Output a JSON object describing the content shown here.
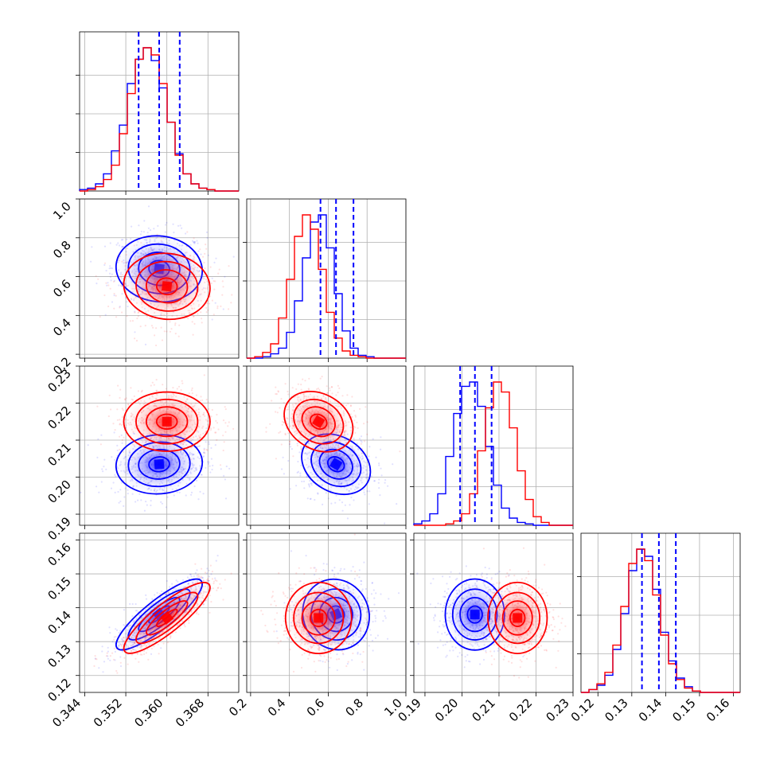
{
  "chart_data": {
    "type": "corner",
    "grid": true,
    "series": [
      {
        "name": "",
        "color": "#0000ff"
      },
      {
        "name": "",
        "color": "#ff0000"
      }
    ],
    "parameters": [
      {
        "range": [
          0.343,
          0.374
        ],
        "ticks": [
          0.344,
          0.352,
          0.36,
          0.368
        ],
        "tick_labels": [
          "0.344",
          "0.352",
          "0.360",
          "0.368"
        ],
        "mean": {
          "blue": 0.3585,
          "red": 0.36
        },
        "sigma": {
          "blue": 0.004,
          "red": 0.004
        },
        "quantiles_blue": [
          0.3545,
          0.3585,
          0.3625
        ]
      },
      {
        "range": [
          0.18,
          1.0
        ],
        "ticks": [
          0.2,
          0.4,
          0.6,
          0.8,
          1.0
        ],
        "tick_labels": [
          "0.2",
          "0.4",
          "0.6",
          "0.8",
          "1.0"
        ],
        "mean": {
          "blue": 0.64,
          "red": 0.55
        },
        "sigma": {
          "blue": 0.085,
          "red": 0.085
        },
        "quantiles_blue": [
          0.56,
          0.64,
          0.73
        ]
      },
      {
        "range": [
          0.187,
          0.23
        ],
        "ticks": [
          0.19,
          0.2,
          0.21,
          0.22,
          0.23
        ],
        "tick_labels": [
          "0.19",
          "0.20",
          "0.21",
          "0.22",
          "0.23"
        ],
        "mean": {
          "blue": 0.2035,
          "red": 0.215
        },
        "sigma": {
          "blue": 0.004,
          "red": 0.004
        },
        "quantiles_blue": [
          0.1995,
          0.2035,
          0.208
        ]
      },
      {
        "range": [
          0.115,
          0.162
        ],
        "ticks": [
          0.12,
          0.13,
          0.14,
          0.15,
          0.16
        ],
        "tick_labels": [
          "0.12",
          "0.13",
          "0.14",
          "0.15",
          "0.16"
        ],
        "mean": {
          "blue": 0.138,
          "red": 0.137
        },
        "sigma": {
          "blue": 0.005,
          "red": 0.005
        },
        "quantiles_blue": [
          0.133,
          0.138,
          0.143
        ]
      }
    ],
    "histograms": {
      "bins": 20,
      "counts_blue": [
        [
          1,
          2,
          5,
          12,
          28,
          46,
          75,
          92,
          100,
          91,
          72,
          48,
          26,
          12,
          5,
          2,
          1,
          0,
          0,
          0
        ],
        [
          0,
          0,
          1,
          3,
          7,
          18,
          40,
          70,
          95,
          100,
          77,
          45,
          19,
          7,
          2,
          1,
          0,
          0,
          0,
          0
        ],
        [
          1,
          3,
          8,
          22,
          48,
          78,
          97,
          100,
          83,
          55,
          28,
          12,
          5,
          2,
          1,
          0,
          0,
          0,
          0,
          0
        ],
        [
          0,
          2,
          5,
          12,
          30,
          55,
          85,
          100,
          95,
          72,
          42,
          22,
          10,
          4,
          1,
          0,
          0,
          0,
          0,
          0
        ]
      ],
      "counts_red": [
        [
          0,
          1,
          3,
          8,
          18,
          40,
          68,
          92,
          100,
          95,
          75,
          48,
          25,
          12,
          5,
          2,
          1,
          0,
          0,
          0
        ],
        [
          0,
          1,
          4,
          10,
          28,
          55,
          85,
          100,
          90,
          62,
          32,
          14,
          5,
          2,
          1,
          0,
          0,
          0,
          0,
          0
        ],
        [
          0,
          0,
          0,
          0,
          1,
          3,
          8,
          22,
          52,
          82,
          100,
          93,
          68,
          38,
          18,
          6,
          2,
          0,
          0,
          0
        ],
        [
          0,
          2,
          6,
          14,
          33,
          60,
          90,
          100,
          92,
          68,
          40,
          20,
          9,
          3,
          1,
          0,
          0,
          0,
          0,
          0
        ]
      ]
    },
    "correlations": {
      "1-0": {
        "blue": -0.05,
        "red": -0.05
      },
      "2-0": {
        "blue": 0.05,
        "red": 0.0
      },
      "2-1": {
        "blue": -0.2,
        "red": -0.2
      },
      "3-0": {
        "blue": 0.85,
        "red": 0.85
      },
      "3-1": {
        "blue": -0.03,
        "red": 0.0
      },
      "3-2": {
        "blue": 0.0,
        "red": 0.0
      }
    }
  }
}
